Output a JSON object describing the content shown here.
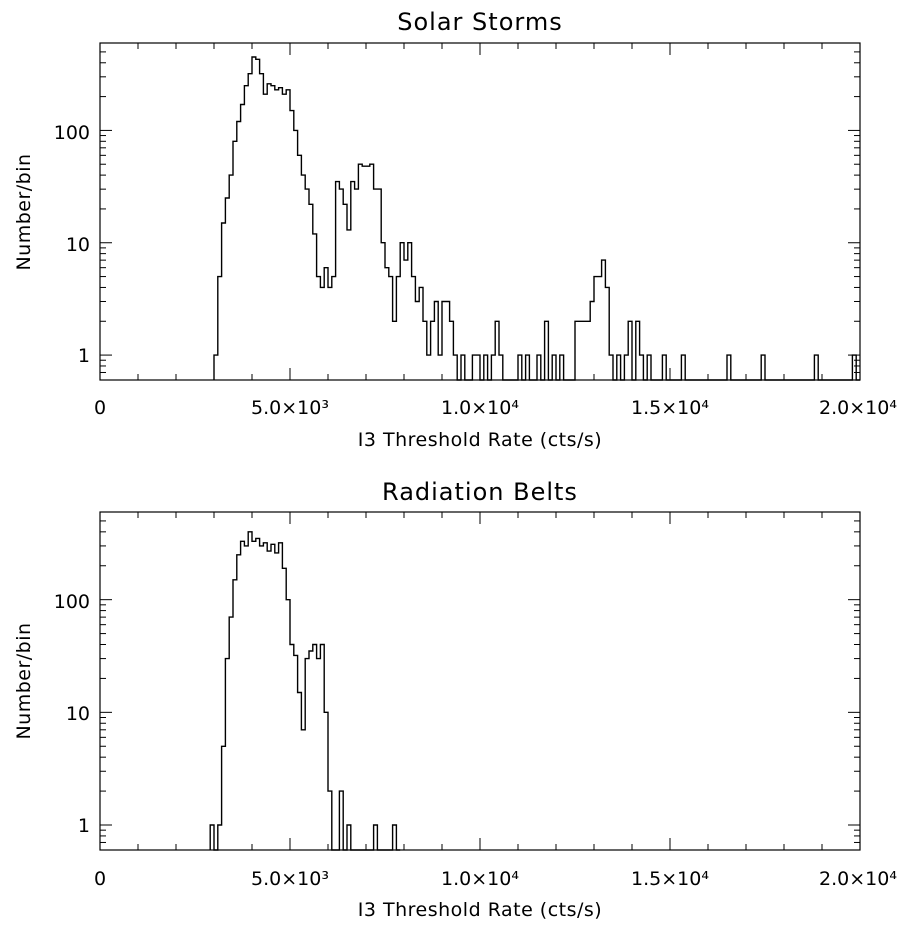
{
  "chart_data": [
    {
      "type": "histogram",
      "title": "Solar Storms",
      "xlabel": "I3 Threshold Rate (cts/s)",
      "ylabel": "Number/bin",
      "xlim": [
        0,
        20000
      ],
      "ylim": [
        0.6,
        600
      ],
      "yscale": "log",
      "x_tick_labels": [
        "0",
        "5.0×10³",
        "1.0×10⁴",
        "1.5×10⁴",
        "2.0×10⁴"
      ],
      "x_tick_values": [
        0,
        5000,
        10000,
        15000,
        20000
      ],
      "y_tick_labels": [
        "1",
        "10",
        "100"
      ],
      "y_tick_values": [
        1,
        10,
        100
      ],
      "bin_width": 100,
      "bins": [
        [
          3100,
          1
        ],
        [
          3200,
          5
        ],
        [
          3300,
          15
        ],
        [
          3400,
          25
        ],
        [
          3500,
          40
        ],
        [
          3600,
          80
        ],
        [
          3700,
          120
        ],
        [
          3800,
          170
        ],
        [
          3900,
          250
        ],
        [
          4000,
          320
        ],
        [
          4100,
          450
        ],
        [
          4200,
          430
        ],
        [
          4300,
          320
        ],
        [
          4400,
          210
        ],
        [
          4500,
          260
        ],
        [
          4600,
          250
        ],
        [
          4700,
          230
        ],
        [
          4800,
          240
        ],
        [
          4900,
          210
        ],
        [
          5000,
          230
        ],
        [
          5100,
          150
        ],
        [
          5200,
          100
        ],
        [
          5300,
          60
        ],
        [
          5400,
          40
        ],
        [
          5500,
          30
        ],
        [
          5600,
          22
        ],
        [
          5700,
          12
        ],
        [
          5800,
          5
        ],
        [
          5900,
          4
        ],
        [
          6000,
          6
        ],
        [
          6100,
          4
        ],
        [
          6200,
          5
        ],
        [
          6300,
          35
        ],
        [
          6400,
          30
        ],
        [
          6500,
          22
        ],
        [
          6600,
          13
        ],
        [
          6700,
          35
        ],
        [
          6800,
          30
        ],
        [
          6900,
          50
        ],
        [
          7000,
          48
        ],
        [
          7100,
          48
        ],
        [
          7200,
          50
        ],
        [
          7300,
          30
        ],
        [
          7400,
          30
        ],
        [
          7500,
          10
        ],
        [
          7600,
          6
        ],
        [
          7700,
          5
        ],
        [
          7800,
          2
        ],
        [
          7900,
          5
        ],
        [
          8000,
          10
        ],
        [
          8100,
          7
        ],
        [
          8200,
          10
        ],
        [
          8300,
          5
        ],
        [
          8400,
          3
        ],
        [
          8500,
          4
        ],
        [
          8600,
          2
        ],
        [
          8700,
          1
        ],
        [
          8800,
          2
        ],
        [
          8900,
          3
        ],
        [
          9000,
          1
        ],
        [
          9100,
          3
        ],
        [
          9200,
          3
        ],
        [
          9300,
          2
        ],
        [
          9400,
          1
        ],
        [
          9500,
          0
        ],
        [
          9600,
          1
        ],
        [
          9700,
          0
        ],
        [
          9800,
          0
        ],
        [
          9900,
          1
        ],
        [
          10000,
          1
        ],
        [
          10100,
          0
        ],
        [
          10200,
          1
        ],
        [
          10300,
          0
        ],
        [
          10400,
          1
        ],
        [
          10500,
          2
        ],
        [
          10600,
          1
        ],
        [
          10700,
          0
        ],
        [
          10800,
          0
        ],
        [
          10900,
          0
        ],
        [
          11000,
          0
        ],
        [
          11100,
          1
        ],
        [
          11200,
          0
        ],
        [
          11300,
          1
        ],
        [
          11400,
          0
        ],
        [
          11500,
          0
        ],
        [
          11600,
          1
        ],
        [
          11700,
          0
        ],
        [
          11800,
          2
        ],
        [
          11900,
          0
        ],
        [
          12000,
          1
        ],
        [
          12100,
          0
        ],
        [
          12200,
          1
        ],
        [
          12300,
          0
        ],
        [
          12400,
          0
        ],
        [
          12500,
          0
        ],
        [
          12600,
          2
        ],
        [
          12700,
          2
        ],
        [
          12800,
          2
        ],
        [
          12900,
          2
        ],
        [
          13000,
          3
        ],
        [
          13100,
          5
        ],
        [
          13200,
          5
        ],
        [
          13300,
          7
        ],
        [
          13400,
          4
        ],
        [
          13500,
          1
        ],
        [
          13600,
          0
        ],
        [
          13700,
          1
        ],
        [
          13800,
          0
        ],
        [
          13900,
          1
        ],
        [
          14000,
          2
        ],
        [
          14100,
          0
        ],
        [
          14200,
          2
        ],
        [
          14300,
          1
        ],
        [
          14400,
          0
        ],
        [
          14500,
          1
        ],
        [
          14600,
          0
        ],
        [
          14700,
          0
        ],
        [
          14800,
          0
        ],
        [
          14900,
          1
        ],
        [
          15000,
          0
        ],
        [
          15100,
          0
        ],
        [
          15200,
          0
        ],
        [
          15300,
          0
        ],
        [
          15400,
          1
        ],
        [
          15500,
          0
        ],
        [
          15600,
          0
        ],
        [
          15700,
          0
        ],
        [
          15800,
          0
        ],
        [
          15900,
          0
        ],
        [
          16000,
          0
        ],
        [
          16100,
          0
        ],
        [
          16200,
          0
        ],
        [
          16300,
          0
        ],
        [
          16400,
          0
        ],
        [
          16500,
          0
        ],
        [
          16600,
          1
        ],
        [
          16700,
          0
        ],
        [
          16800,
          0
        ],
        [
          16900,
          0
        ],
        [
          17000,
          0
        ],
        [
          17100,
          0
        ],
        [
          17200,
          0
        ],
        [
          17300,
          0
        ],
        [
          17400,
          0
        ],
        [
          17500,
          1
        ],
        [
          17600,
          0
        ],
        [
          17700,
          0
        ],
        [
          17800,
          0
        ],
        [
          17900,
          0
        ],
        [
          18000,
          0
        ],
        [
          18100,
          0
        ],
        [
          18200,
          0
        ],
        [
          18300,
          0
        ],
        [
          18400,
          0
        ],
        [
          18500,
          0
        ],
        [
          18600,
          0
        ],
        [
          18700,
          0
        ],
        [
          18800,
          0
        ],
        [
          18900,
          1
        ],
        [
          19000,
          0
        ],
        [
          19100,
          0
        ],
        [
          19200,
          0
        ],
        [
          19300,
          0
        ],
        [
          19400,
          0
        ],
        [
          19500,
          0
        ],
        [
          19600,
          0
        ],
        [
          19700,
          0
        ],
        [
          19800,
          0
        ],
        [
          19900,
          1
        ],
        [
          20000,
          0
        ]
      ]
    },
    {
      "type": "histogram",
      "title": "Radiation Belts",
      "xlabel": "I3 Threshold Rate (cts/s)",
      "ylabel": "Number/bin",
      "xlim": [
        0,
        20000
      ],
      "ylim": [
        0.6,
        600
      ],
      "yscale": "log",
      "x_tick_labels": [
        "0",
        "5.0×10³",
        "1.0×10⁴",
        "1.5×10⁴",
        "2.0×10⁴"
      ],
      "x_tick_values": [
        0,
        5000,
        10000,
        15000,
        20000
      ],
      "y_tick_labels": [
        "1",
        "10",
        "100"
      ],
      "y_tick_values": [
        1,
        10,
        100
      ],
      "bin_width": 100,
      "bins": [
        [
          3000,
          1
        ],
        [
          3100,
          0
        ],
        [
          3200,
          1
        ],
        [
          3300,
          5
        ],
        [
          3400,
          30
        ],
        [
          3500,
          70
        ],
        [
          3600,
          150
        ],
        [
          3700,
          250
        ],
        [
          3800,
          330
        ],
        [
          3900,
          300
        ],
        [
          4000,
          400
        ],
        [
          4100,
          330
        ],
        [
          4200,
          350
        ],
        [
          4300,
          300
        ],
        [
          4400,
          320
        ],
        [
          4500,
          270
        ],
        [
          4600,
          310
        ],
        [
          4700,
          260
        ],
        [
          4800,
          320
        ],
        [
          4900,
          190
        ],
        [
          5000,
          100
        ],
        [
          5100,
          40
        ],
        [
          5200,
          32
        ],
        [
          5300,
          15
        ],
        [
          5400,
          7
        ],
        [
          5500,
          30
        ],
        [
          5600,
          35
        ],
        [
          5700,
          40
        ],
        [
          5800,
          30
        ],
        [
          5900,
          40
        ],
        [
          6000,
          10
        ],
        [
          6100,
          2
        ],
        [
          6200,
          0
        ],
        [
          6300,
          0
        ],
        [
          6400,
          2
        ],
        [
          6500,
          0
        ],
        [
          6600,
          1
        ],
        [
          6700,
          0
        ],
        [
          6800,
          0
        ],
        [
          6900,
          0
        ],
        [
          7000,
          0
        ],
        [
          7100,
          0
        ],
        [
          7200,
          0
        ],
        [
          7300,
          1
        ],
        [
          7400,
          0
        ],
        [
          7500,
          0
        ],
        [
          7600,
          0
        ],
        [
          7700,
          0
        ],
        [
          7800,
          1
        ],
        [
          7900,
          0
        ]
      ]
    }
  ]
}
